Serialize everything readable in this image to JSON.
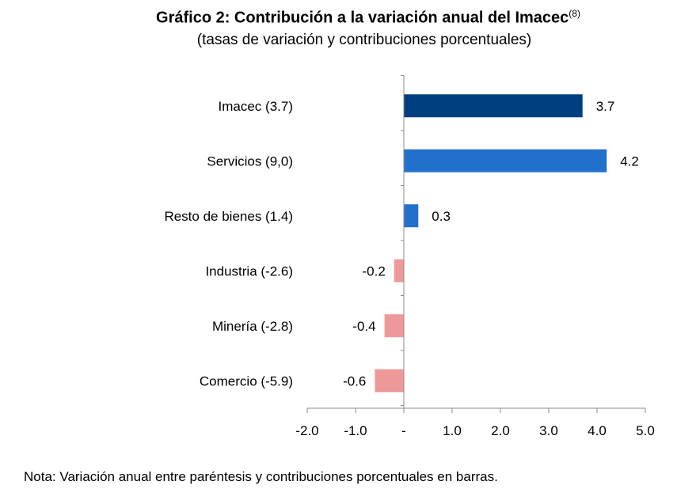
{
  "chart_data": {
    "type": "bar",
    "orientation": "horizontal",
    "title": "Gráfico 2: Contribución a la variación anual del Imacec",
    "title_superscript": "(8)",
    "subtitle": "(tasas de variación y contribuciones porcentuales)",
    "categories": [
      "Imacec (3.7)",
      "Servicios (9,0)",
      "Resto de bienes (1.4)",
      "Industria (-2.6)",
      "Minería (-2.8)",
      "Comercio (-5.9)"
    ],
    "values": [
      3.7,
      4.2,
      0.3,
      -0.2,
      -0.4,
      -0.6
    ],
    "data_labels": [
      "3.7",
      "4.2",
      "0.3",
      "-0.2",
      "-0.4",
      "-0.6"
    ],
    "colors": [
      "#003F7F",
      "#2171CC",
      "#2171CC",
      "#EE9999",
      "#EE9999",
      "#EE9999"
    ],
    "xlim": [
      -2.0,
      5.0
    ],
    "xticks": [
      -2.0,
      -1.0,
      0,
      1.0,
      2.0,
      3.0,
      4.0,
      5.0
    ],
    "xtick_labels": [
      "-2.0",
      "-1.0",
      "-",
      "1.0",
      "2.0",
      "3.0",
      "4.0",
      "5.0"
    ],
    "grid": false,
    "legend": "none"
  },
  "note": {
    "label": "Nota",
    "text": ": Variación anual entre paréntesis y contribuciones porcentuales en barras."
  }
}
